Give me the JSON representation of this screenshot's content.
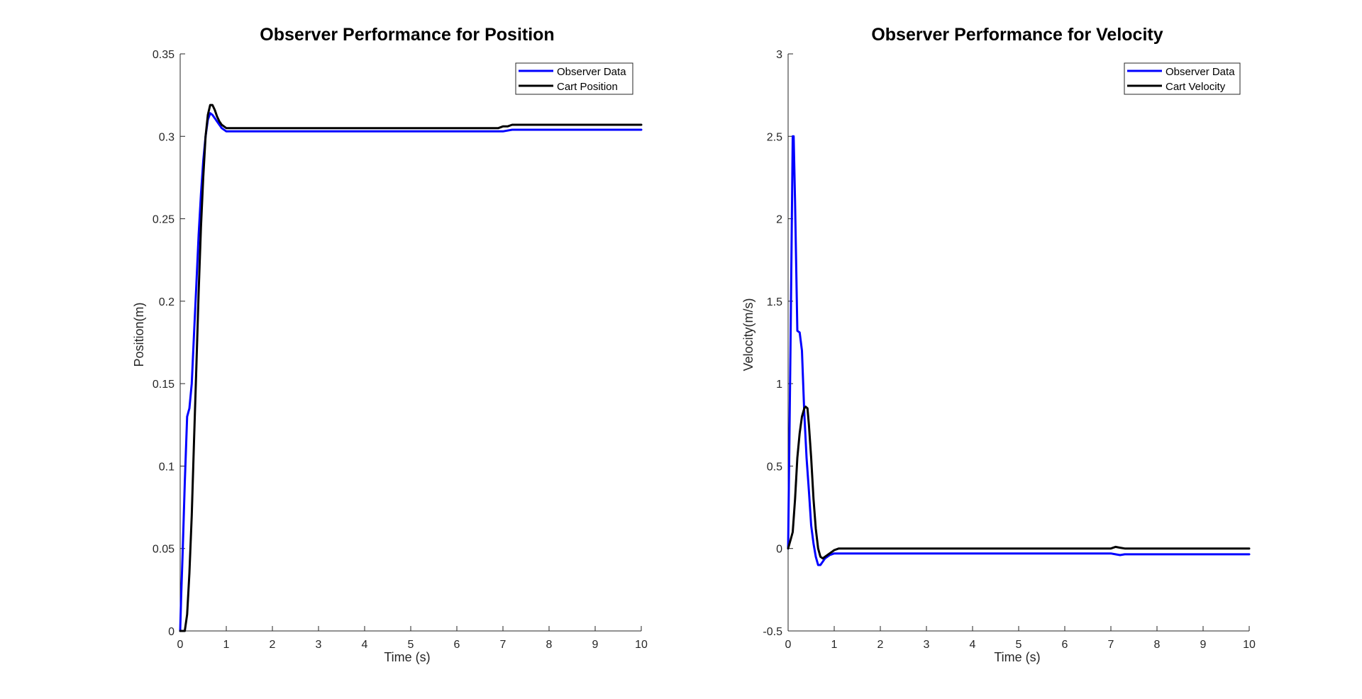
{
  "chart_data": [
    {
      "type": "line",
      "title": "Observer Performance for Position",
      "xlabel": "Time (s)",
      "ylabel": "Position(m)",
      "xlim": [
        0,
        10
      ],
      "ylim": [
        0,
        0.35
      ],
      "xticks": [
        "0",
        "1",
        "2",
        "3",
        "4",
        "5",
        "6",
        "7",
        "8",
        "9",
        "10"
      ],
      "yticks": [
        "0",
        "0.05",
        "0.1",
        "0.15",
        "0.2",
        "0.25",
        "0.3",
        "0.35"
      ],
      "legend_position": "top-right",
      "grid": false,
      "series": [
        {
          "name": "Observer Data",
          "color": "#0000FF",
          "x": [
            0,
            0.02,
            0.05,
            0.1,
            0.15,
            0.2,
            0.25,
            0.3,
            0.35,
            0.4,
            0.45,
            0.5,
            0.55,
            0.6,
            0.65,
            0.7,
            0.75,
            0.8,
            0.9,
            1.0,
            1.1,
            1.2,
            2,
            3,
            4,
            5,
            6,
            7,
            7.2,
            8,
            9,
            10
          ],
          "y": [
            0,
            0.02,
            0.045,
            0.09,
            0.13,
            0.135,
            0.15,
            0.18,
            0.21,
            0.24,
            0.265,
            0.285,
            0.3,
            0.31,
            0.314,
            0.313,
            0.311,
            0.309,
            0.305,
            0.303,
            0.303,
            0.303,
            0.303,
            0.303,
            0.303,
            0.303,
            0.303,
            0.303,
            0.304,
            0.304,
            0.304,
            0.304
          ]
        },
        {
          "name": "Cart Position",
          "color": "#000000",
          "x": [
            0,
            0.05,
            0.1,
            0.15,
            0.2,
            0.25,
            0.3,
            0.35,
            0.4,
            0.45,
            0.5,
            0.55,
            0.6,
            0.65,
            0.7,
            0.75,
            0.8,
            0.85,
            0.9,
            1.0,
            1.1,
            1.2,
            2,
            3,
            4,
            5,
            6,
            6.9,
            7.0,
            7.1,
            7.2,
            8,
            9,
            10
          ],
          "y": [
            0,
            0,
            0,
            0.01,
            0.035,
            0.07,
            0.115,
            0.16,
            0.205,
            0.245,
            0.275,
            0.3,
            0.313,
            0.319,
            0.319,
            0.316,
            0.312,
            0.309,
            0.307,
            0.305,
            0.305,
            0.305,
            0.305,
            0.305,
            0.305,
            0.305,
            0.305,
            0.305,
            0.306,
            0.306,
            0.307,
            0.307,
            0.307,
            0.307
          ]
        }
      ]
    },
    {
      "type": "line",
      "title": "Observer Performance for Velocity",
      "xlabel": "Time (s)",
      "ylabel": "Velocity(m/s)",
      "xlim": [
        0,
        10
      ],
      "ylim": [
        -0.5,
        3
      ],
      "xticks": [
        "0",
        "1",
        "2",
        "3",
        "4",
        "5",
        "6",
        "7",
        "8",
        "9",
        "10"
      ],
      "yticks": [
        "-0.5",
        "0",
        "0.5",
        "1",
        "1.5",
        "2",
        "2.5",
        "3"
      ],
      "legend_position": "top-right",
      "grid": false,
      "series": [
        {
          "name": "Observer Data",
          "color": "#0000FF",
          "x": [
            0,
            0.05,
            0.1,
            0.12,
            0.15,
            0.2,
            0.25,
            0.3,
            0.35,
            0.4,
            0.45,
            0.5,
            0.55,
            0.6,
            0.65,
            0.7,
            0.75,
            0.8,
            0.9,
            1.0,
            1.1,
            1.2,
            2,
            3,
            4,
            5,
            6,
            7,
            7.1,
            7.2,
            7.3,
            8,
            9,
            10
          ],
          "y": [
            0,
            1.2,
            2.5,
            2.5,
            2.1,
            1.32,
            1.31,
            1.2,
            0.82,
            0.55,
            0.35,
            0.14,
            0.03,
            -0.05,
            -0.1,
            -0.1,
            -0.08,
            -0.06,
            -0.04,
            -0.03,
            -0.03,
            -0.03,
            -0.03,
            -0.03,
            -0.03,
            -0.03,
            -0.03,
            -0.03,
            -0.035,
            -0.04,
            -0.035,
            -0.035,
            -0.035,
            -0.035
          ]
        },
        {
          "name": "Cart Velocity",
          "color": "#000000",
          "x": [
            0,
            0.05,
            0.1,
            0.15,
            0.2,
            0.25,
            0.3,
            0.35,
            0.38,
            0.42,
            0.45,
            0.5,
            0.55,
            0.6,
            0.65,
            0.7,
            0.75,
            0.8,
            0.85,
            0.9,
            0.95,
            1.0,
            1.1,
            1.2,
            2,
            3,
            4,
            5,
            6,
            7,
            7.1,
            7.2,
            7.3,
            8,
            9,
            10
          ],
          "y": [
            0,
            0.05,
            0.1,
            0.3,
            0.55,
            0.7,
            0.8,
            0.85,
            0.86,
            0.85,
            0.75,
            0.55,
            0.3,
            0.12,
            0.0,
            -0.05,
            -0.06,
            -0.05,
            -0.04,
            -0.03,
            -0.02,
            -0.01,
            0,
            0,
            0,
            0,
            0,
            0,
            0,
            0,
            0.01,
            0.005,
            0,
            0,
            0,
            0
          ]
        }
      ]
    }
  ]
}
